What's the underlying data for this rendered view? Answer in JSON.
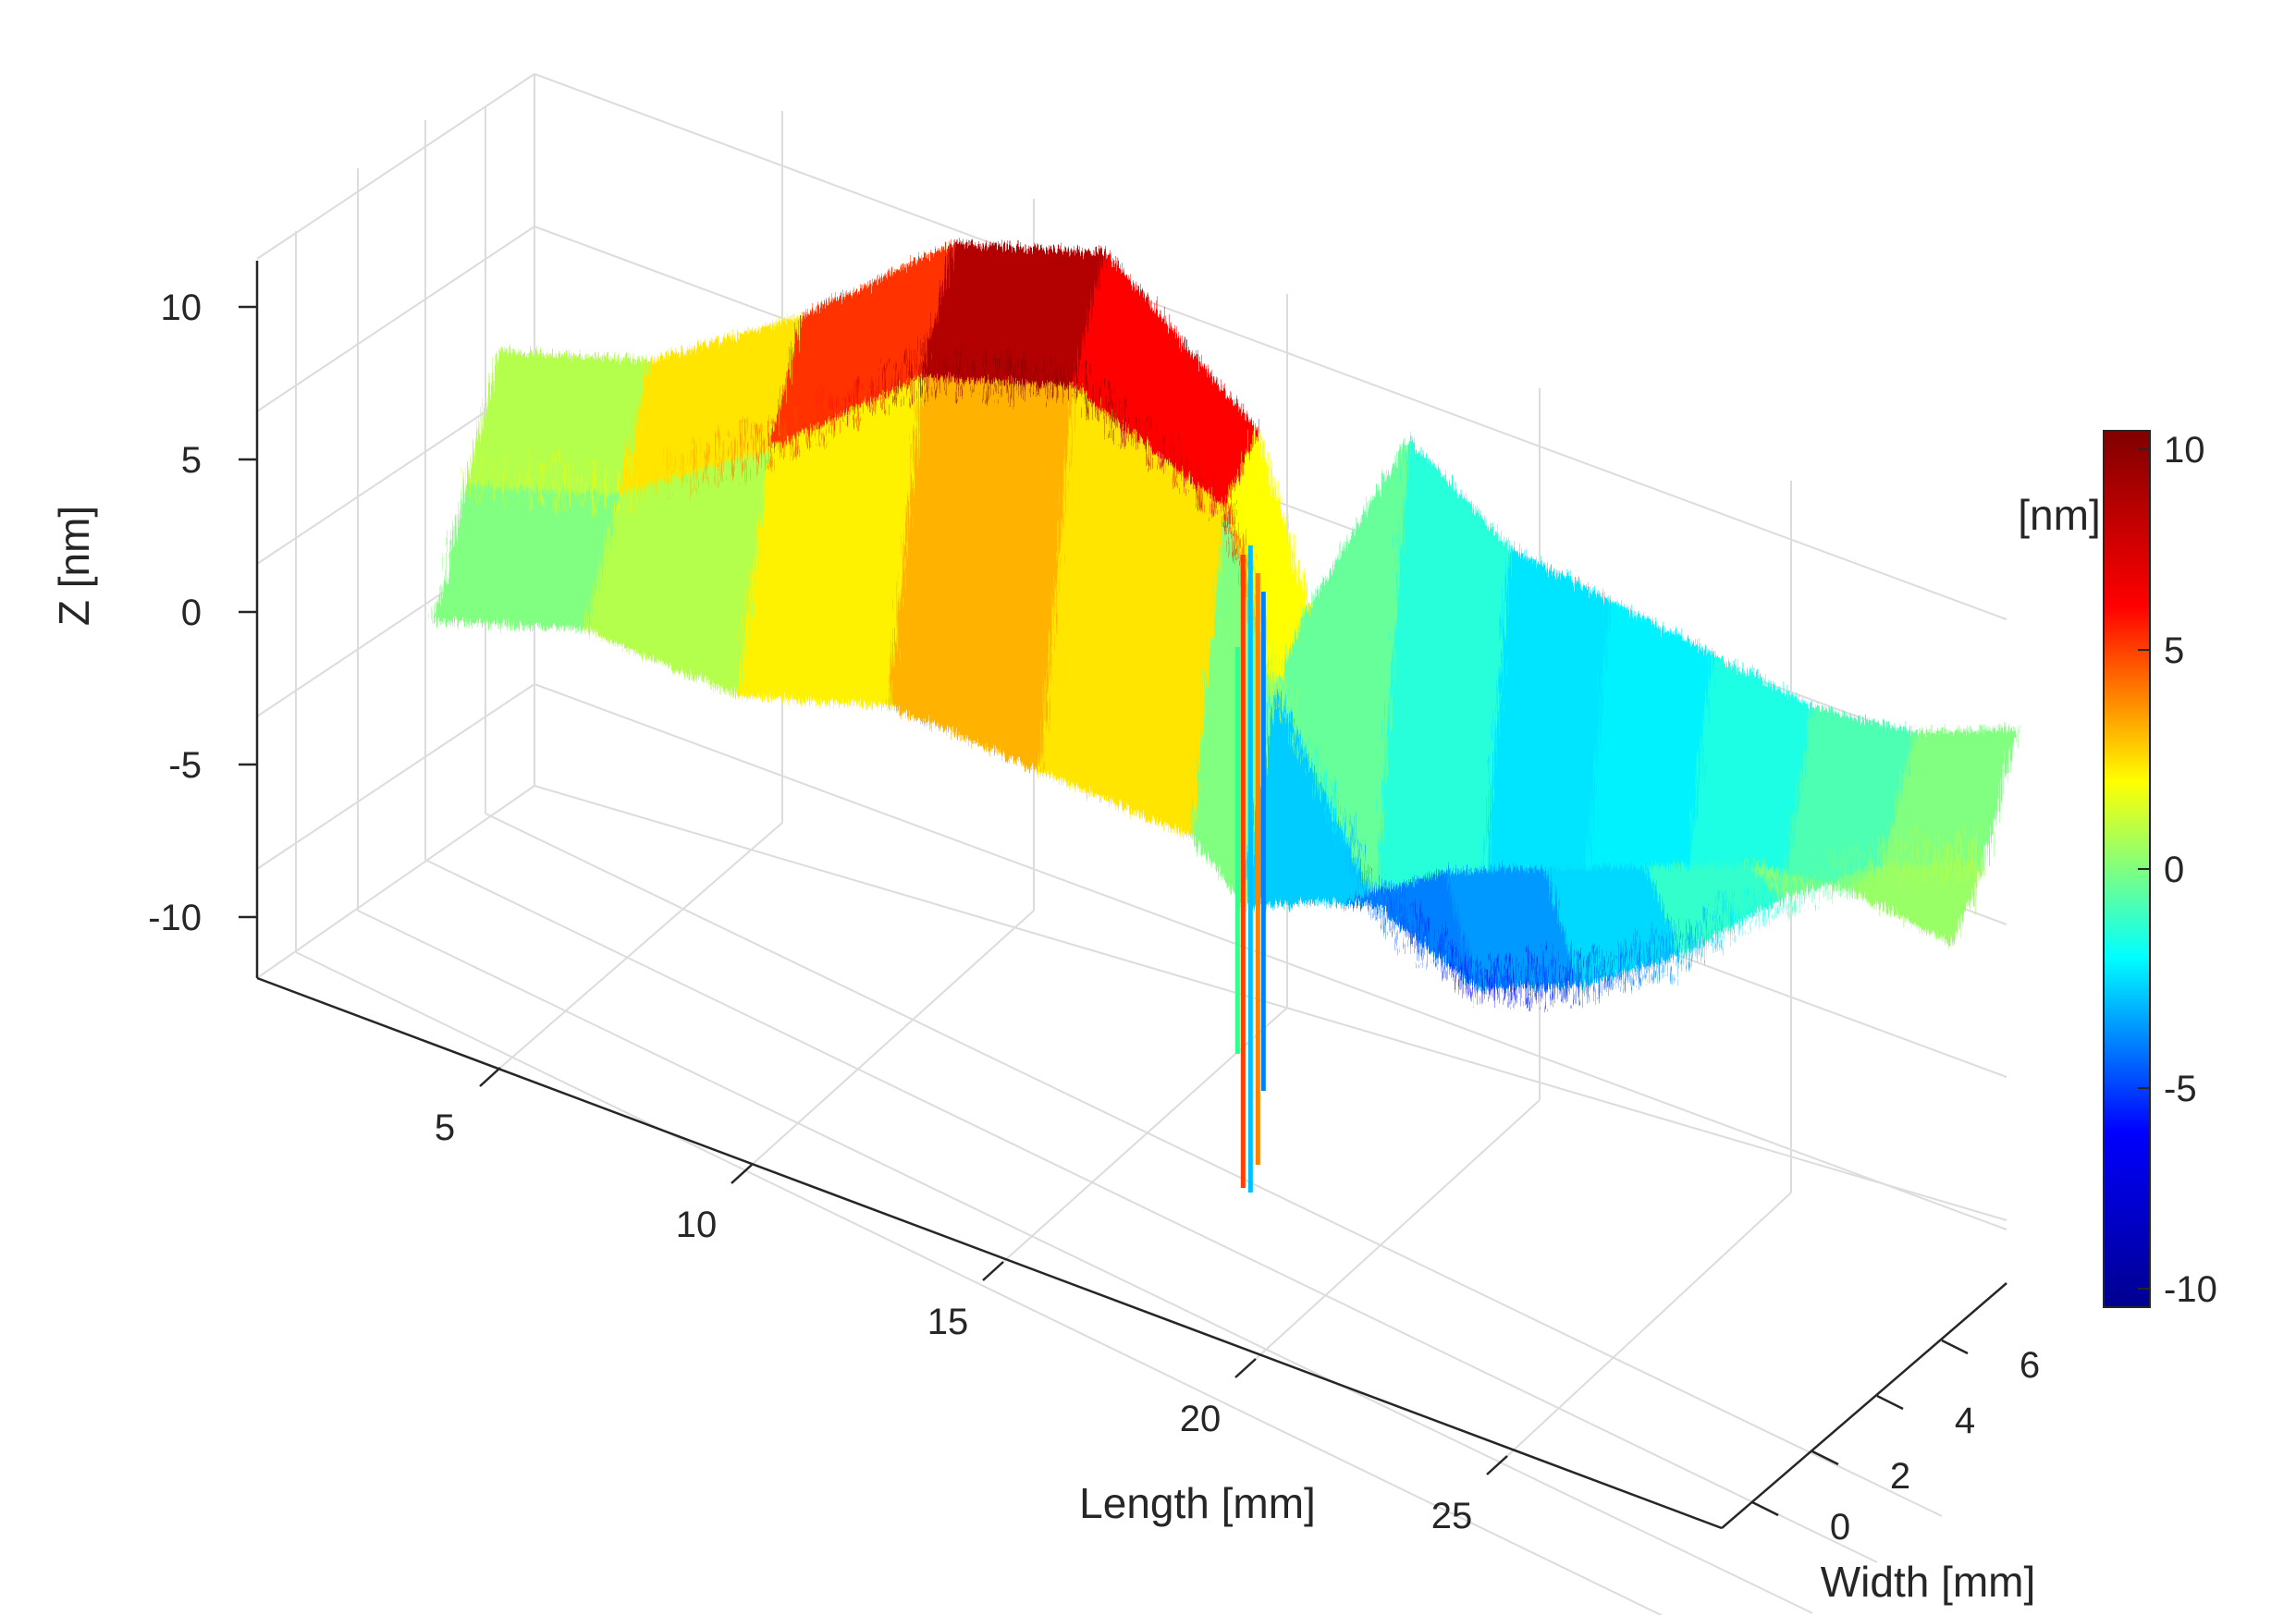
{
  "chart_data": {
    "type": "surface",
    "xlabel": "Length [mm]",
    "ylabel": "Width [mm]",
    "zlabel": "Z  [nm]",
    "x_ticks": [
      "5",
      "10",
      "15",
      "20",
      "25"
    ],
    "y_ticks": [
      "0",
      "2",
      "4",
      "6"
    ],
    "z_ticks": [
      "10",
      "5",
      "0",
      "-5",
      "-10"
    ],
    "xlim": [
      0,
      30
    ],
    "ylim": [
      0,
      7
    ],
    "zlim": [
      -12,
      12
    ],
    "grid": true,
    "colormap": "jet",
    "colorbar": {
      "label": "[nm]",
      "ticks": [
        "10",
        "5",
        "0",
        "-5",
        "-10"
      ],
      "range": [
        -10,
        10
      ],
      "colors": [
        "#00008f",
        "#0000ff",
        "#00ffff",
        "#ffff00",
        "#ff0000",
        "#800000"
      ]
    },
    "surface": {
      "length_mm": [
        0,
        3,
        6,
        9,
        12,
        15,
        16,
        18,
        20,
        22,
        24,
        26,
        28,
        30
      ],
      "front_edge_z_nm": [
        -1,
        0,
        -1,
        0,
        -1,
        -2,
        -4,
        -3,
        -1,
        0,
        1,
        2,
        2,
        1
      ],
      "center_z_nm": [
        0,
        1,
        4,
        8,
        9,
        6,
        0,
        -7,
        -9,
        -8,
        -6,
        -3,
        -1,
        0
      ],
      "back_edge_z_nm": [
        1,
        2,
        5,
        9,
        10,
        5,
        -1,
        6,
        3,
        2,
        1,
        0,
        0,
        1
      ],
      "anomaly_at_length_mm": 15.5
    }
  }
}
